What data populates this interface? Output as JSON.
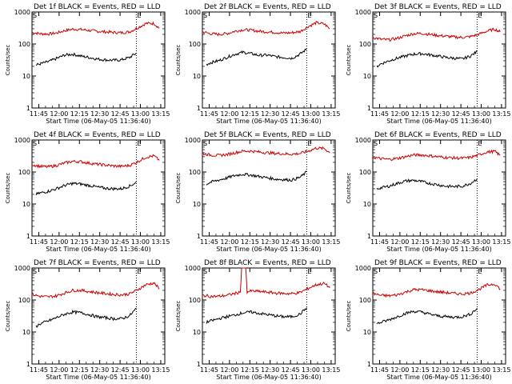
{
  "chart_data": [
    {
      "type": "line",
      "title": "Det 1f BLACK = Events, RED = LLD",
      "xlabel": "Start Time (06-May-05 11:36:40)",
      "ylabel": "Counts/sec",
      "yscale": "log",
      "ylim": [
        1,
        1000
      ],
      "yticks": [
        "1",
        "10",
        "100",
        "1000"
      ],
      "xticks": [
        "11:45",
        "12:00",
        "12:15",
        "12:30",
        "12:45",
        "13:00",
        "13:15"
      ],
      "markers": {
        "S": "11:40",
        "E": "12:57"
      },
      "series": [
        {
          "color": "#cc0000",
          "x": [
            "11:40",
            "11:46",
            "11:52",
            "11:58",
            "12:04",
            "12:10",
            "12:16",
            "12:22",
            "12:28",
            "12:34",
            "12:40",
            "12:46",
            "12:52",
            "12:58",
            "13:04",
            "13:10",
            "13:14"
          ],
          "values": [
            230,
            210,
            205,
            220,
            260,
            290,
            285,
            265,
            250,
            240,
            230,
            225,
            240,
            320,
            440,
            440,
            310
          ]
        },
        {
          "color": "#000000",
          "x": [
            "11:43",
            "11:46",
            "11:52",
            "11:58",
            "12:04",
            "12:10",
            "12:16",
            "12:22",
            "12:28",
            "12:34",
            "12:40",
            "12:46",
            "12:52",
            "12:57"
          ],
          "values": [
            22,
            24,
            28,
            35,
            45,
            48,
            42,
            38,
            34,
            32,
            31,
            32,
            38,
            52
          ]
        }
      ]
    },
    {
      "type": "line",
      "title": "Det 2f BLACK = Events, RED = LLD",
      "xlabel": "Start Time (06-May-05 11:36:40)",
      "ylabel": "Counts/sec",
      "yscale": "log",
      "ylim": [
        1,
        1000
      ],
      "yticks": [
        "1",
        "10",
        "100",
        "1000"
      ],
      "xticks": [
        "11:45",
        "12:00",
        "12:15",
        "12:30",
        "12:45",
        "13:00",
        "13:15"
      ],
      "markers": {
        "S": "11:40",
        "E": "12:57"
      },
      "series": [
        {
          "color": "#cc0000",
          "x": [
            "11:40",
            "11:46",
            "11:52",
            "11:58",
            "12:04",
            "12:10",
            "12:16",
            "12:22",
            "12:28",
            "12:34",
            "12:40",
            "12:46",
            "12:52",
            "12:58",
            "13:04",
            "13:10",
            "13:14"
          ],
          "values": [
            240,
            210,
            200,
            210,
            250,
            280,
            270,
            250,
            240,
            230,
            220,
            225,
            245,
            350,
            460,
            420,
            300
          ]
        },
        {
          "color": "#000000",
          "x": [
            "11:43",
            "11:46",
            "11:52",
            "11:58",
            "12:04",
            "12:10",
            "12:16",
            "12:22",
            "12:28",
            "12:34",
            "12:40",
            "12:46",
            "12:52",
            "12:57"
          ],
          "values": [
            23,
            26,
            30,
            38,
            48,
            55,
            50,
            44,
            45,
            40,
            38,
            36,
            48,
            70
          ]
        }
      ]
    },
    {
      "type": "line",
      "title": "Det 3f BLACK = Events, RED = LLD",
      "xlabel": "Start Time (06-May-05 11:36:40)",
      "ylabel": "Counts/sec",
      "yscale": "log",
      "ylim": [
        1,
        1000
      ],
      "yticks": [
        "1",
        "10",
        "100",
        "1000"
      ],
      "xticks": [
        "11:45",
        "12:00",
        "12:15",
        "12:30",
        "12:45",
        "13:00",
        "13:15"
      ],
      "markers": {
        "S": "11:40",
        "E": "12:57"
      },
      "series": [
        {
          "color": "#cc0000",
          "x": [
            "11:40",
            "11:46",
            "11:52",
            "11:58",
            "12:04",
            "12:10",
            "12:16",
            "12:22",
            "12:28",
            "12:34",
            "12:40",
            "12:46",
            "12:52",
            "12:58",
            "13:04",
            "13:10",
            "13:14"
          ],
          "values": [
            160,
            140,
            135,
            150,
            180,
            210,
            215,
            200,
            185,
            175,
            165,
            160,
            170,
            200,
            250,
            290,
            240
          ]
        },
        {
          "color": "#000000",
          "x": [
            "11:43",
            "11:46",
            "11:52",
            "11:58",
            "12:04",
            "12:10",
            "12:16",
            "12:22",
            "12:28",
            "12:34",
            "12:40",
            "12:46",
            "12:52",
            "12:57"
          ],
          "values": [
            20,
            24,
            30,
            36,
            42,
            48,
            50,
            46,
            42,
            38,
            36,
            34,
            42,
            58
          ]
        }
      ]
    },
    {
      "type": "line",
      "title": "Det 4f BLACK = Events, RED = LLD",
      "xlabel": "Start Time (06-May-05 11:36:40)",
      "ylabel": "Counts/sec",
      "yscale": "log",
      "ylim": [
        1,
        1000
      ],
      "yticks": [
        "1",
        "10",
        "100",
        "1000"
      ],
      "xticks": [
        "11:45",
        "12:00",
        "12:15",
        "12:30",
        "12:45",
        "13:00",
        "13:15"
      ],
      "markers": {
        "S": "11:40",
        "E": "12:57"
      },
      "series": [
        {
          "color": "#cc0000",
          "x": [
            "11:40",
            "11:46",
            "11:52",
            "11:58",
            "12:04",
            "12:10",
            "12:16",
            "12:22",
            "12:28",
            "12:34",
            "12:40",
            "12:46",
            "12:52",
            "12:58",
            "13:04",
            "13:10",
            "13:14"
          ],
          "values": [
            170,
            150,
            145,
            160,
            190,
            215,
            210,
            190,
            175,
            165,
            155,
            150,
            160,
            210,
            290,
            320,
            230
          ]
        },
        {
          "color": "#000000",
          "x": [
            "11:43",
            "11:46",
            "11:52",
            "11:58",
            "12:04",
            "12:10",
            "12:16",
            "12:22",
            "12:28",
            "12:34",
            "12:40",
            "12:46",
            "12:52",
            "12:57"
          ],
          "values": [
            20,
            22,
            25,
            30,
            38,
            44,
            42,
            38,
            34,
            31,
            30,
            30,
            36,
            48
          ]
        }
      ]
    },
    {
      "type": "line",
      "title": "Det 5f BLACK = Events, RED = LLD",
      "xlabel": "Start Time (06-May-05 11:36:40)",
      "ylabel": "Counts/sec",
      "yscale": "log",
      "ylim": [
        1,
        1000
      ],
      "yticks": [
        "1",
        "10",
        "100",
        "1000"
      ],
      "xticks": [
        "11:45",
        "12:00",
        "12:15",
        "12:30",
        "12:45",
        "13:00",
        "13:15"
      ],
      "markers": {
        "S": "11:40",
        "E": "12:57"
      },
      "series": [
        {
          "color": "#cc0000",
          "x": [
            "11:40",
            "11:46",
            "11:52",
            "11:58",
            "12:04",
            "12:10",
            "12:16",
            "12:22",
            "12:28",
            "12:34",
            "12:40",
            "12:46",
            "12:52",
            "12:58",
            "13:04",
            "13:10",
            "13:14"
          ],
          "values": [
            380,
            340,
            330,
            350,
            400,
            450,
            450,
            420,
            400,
            380,
            370,
            360,
            380,
            450,
            560,
            540,
            400
          ]
        },
        {
          "color": "#000000",
          "x": [
            "11:43",
            "11:46",
            "11:52",
            "11:58",
            "12:04",
            "12:10",
            "12:16",
            "12:22",
            "12:28",
            "12:34",
            "12:40",
            "12:46",
            "12:52",
            "12:57"
          ],
          "values": [
            42,
            48,
            56,
            65,
            78,
            85,
            80,
            72,
            66,
            60,
            58,
            56,
            68,
            100
          ]
        }
      ]
    },
    {
      "type": "line",
      "title": "Det 6f BLACK = Events, RED = LLD",
      "xlabel": "Start Time (06-May-05 11:36:40)",
      "ylabel": "Counts/sec",
      "yscale": "log",
      "ylim": [
        1,
        1000
      ],
      "yticks": [
        "1",
        "10",
        "100",
        "1000"
      ],
      "xticks": [
        "11:45",
        "12:00",
        "12:15",
        "12:30",
        "12:45",
        "13:00",
        "13:15"
      ],
      "markers": {
        "S": "11:40",
        "E": "12:57"
      },
      "series": [
        {
          "color": "#cc0000",
          "x": [
            "11:40",
            "11:46",
            "11:52",
            "11:58",
            "12:04",
            "12:10",
            "12:16",
            "12:22",
            "12:28",
            "12:34",
            "12:40",
            "12:46",
            "12:52",
            "12:58",
            "13:04",
            "13:10",
            "13:14"
          ],
          "values": [
            290,
            260,
            250,
            265,
            300,
            340,
            340,
            320,
            300,
            285,
            275,
            270,
            285,
            340,
            420,
            440,
            330
          ]
        },
        {
          "color": "#000000",
          "x": [
            "11:43",
            "11:46",
            "11:52",
            "11:58",
            "12:04",
            "12:10",
            "12:16",
            "12:22",
            "12:28",
            "12:34",
            "12:40",
            "12:46",
            "12:52",
            "12:57"
          ],
          "values": [
            30,
            32,
            36,
            44,
            52,
            55,
            50,
            44,
            40,
            36,
            35,
            36,
            44,
            62
          ]
        }
      ]
    },
    {
      "type": "line",
      "title": "Det 7f BLACK = Events, RED = LLD",
      "xlabel": "Start Time (06-May-05 11:36:40)",
      "ylabel": "Counts/sec",
      "yscale": "log",
      "ylim": [
        1,
        1000
      ],
      "yticks": [
        "1",
        "10",
        "100",
        "1000"
      ],
      "xticks": [
        "11:45",
        "12:00",
        "12:15",
        "12:30",
        "12:45",
        "13:00",
        "13:15"
      ],
      "markers": {
        "S": "11:40",
        "E": "12:57"
      },
      "series": [
        {
          "color": "#cc0000",
          "x": [
            "11:40",
            "11:46",
            "11:52",
            "11:58",
            "12:04",
            "12:10",
            "12:16",
            "12:22",
            "12:28",
            "12:34",
            "12:40",
            "12:46",
            "12:52",
            "12:58",
            "13:04",
            "13:10",
            "13:14"
          ],
          "values": [
            150,
            130,
            125,
            135,
            165,
            200,
            200,
            185,
            170,
            160,
            150,
            145,
            155,
            210,
            300,
            340,
            220
          ]
        },
        {
          "color": "#000000",
          "x": [
            "11:43",
            "11:46",
            "11:52",
            "11:58",
            "12:04",
            "12:10",
            "12:16",
            "12:22",
            "12:28",
            "12:34",
            "12:40",
            "12:46",
            "12:52",
            "12:57"
          ],
          "values": [
            15,
            18,
            22,
            28,
            36,
            42,
            40,
            35,
            30,
            28,
            26,
            26,
            32,
            55
          ]
        }
      ]
    },
    {
      "type": "line",
      "title": "Det 8f BLACK = Events, RED = LLD",
      "xlabel": "Start Time (06-May-05 11:36:40)",
      "ylabel": "Counts/sec",
      "yscale": "log",
      "ylim": [
        1,
        1000
      ],
      "yticks": [
        "1",
        "10",
        "100",
        "1000"
      ],
      "xticks": [
        "11:45",
        "12:00",
        "12:15",
        "12:30",
        "12:45",
        "13:00",
        "13:15"
      ],
      "markers": {
        "S": "11:40",
        "E": "12:57"
      },
      "series": [
        {
          "color": "#cc0000",
          "x": [
            "11:40",
            "11:46",
            "11:52",
            "11:58",
            "12:04",
            "12:08",
            "12:09",
            "12:12",
            "12:13",
            "12:16",
            "12:22",
            "12:28",
            "12:34",
            "12:40",
            "12:46",
            "12:52",
            "12:58",
            "13:04",
            "13:10",
            "13:14"
          ],
          "values": [
            140,
            130,
            130,
            140,
            160,
            175,
            1000,
            1000,
            180,
            190,
            185,
            175,
            165,
            160,
            158,
            170,
            230,
            300,
            330,
            240
          ]
        },
        {
          "color": "#000000",
          "x": [
            "11:43",
            "11:46",
            "11:52",
            "11:58",
            "12:04",
            "12:10",
            "12:16",
            "12:22",
            "12:28",
            "12:34",
            "12:40",
            "12:46",
            "12:52",
            "12:57"
          ],
          "values": [
            20,
            22,
            26,
            30,
            34,
            40,
            42,
            38,
            35,
            32,
            30,
            30,
            36,
            58
          ]
        }
      ]
    },
    {
      "type": "line",
      "title": "Det 9f BLACK = Events, RED = LLD",
      "xlabel": "Start Time (06-May-05 11:36:40)",
      "ylabel": "Counts/sec",
      "yscale": "log",
      "ylim": [
        1,
        1000
      ],
      "yticks": [
        "1",
        "10",
        "100",
        "1000"
      ],
      "xticks": [
        "11:45",
        "12:00",
        "12:15",
        "12:30",
        "12:45",
        "13:00",
        "13:15"
      ],
      "markers": {
        "S": "11:40",
        "E": "12:57"
      },
      "series": [
        {
          "color": "#cc0000",
          "x": [
            "11:40",
            "11:46",
            "11:52",
            "11:58",
            "12:04",
            "12:10",
            "12:16",
            "12:22",
            "12:28",
            "12:34",
            "12:40",
            "12:46",
            "12:52",
            "12:58",
            "13:04",
            "13:10",
            "13:14"
          ],
          "values": [
            160,
            140,
            135,
            145,
            175,
            210,
            210,
            195,
            180,
            170,
            160,
            155,
            165,
            210,
            290,
            320,
            220
          ]
        },
        {
          "color": "#000000",
          "x": [
            "11:43",
            "11:46",
            "11:52",
            "11:58",
            "12:04",
            "12:10",
            "12:16",
            "12:22",
            "12:28",
            "12:34",
            "12:40",
            "12:46",
            "12:52",
            "12:57"
          ],
          "values": [
            18,
            20,
            24,
            30,
            38,
            44,
            42,
            36,
            32,
            30,
            29,
            30,
            36,
            55
          ]
        }
      ]
    }
  ]
}
